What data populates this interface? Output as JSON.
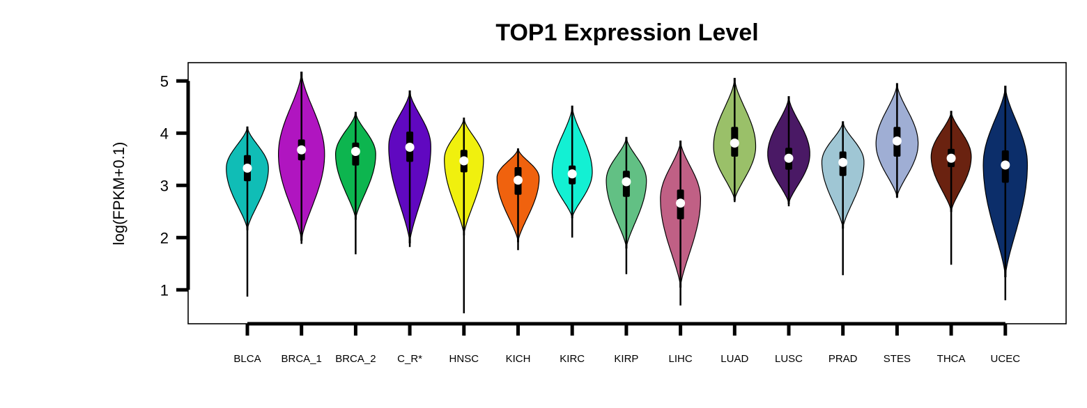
{
  "chart_data": {
    "type": "violin",
    "title": "TOP1 Expression Level",
    "ylabel": "log(FPKM+0.1)",
    "xlabel": "",
    "ylim": [
      0.35,
      5.35
    ],
    "yticks": [
      1,
      2,
      3,
      4,
      5
    ],
    "categories": [
      "BLCA",
      "BRCA_1",
      "BRCA_2",
      "C_R*",
      "HNSC",
      "KICH",
      "KIRC",
      "KIRP",
      "LIHC",
      "LUAD",
      "LUSC",
      "PRAD",
      "STES",
      "THCA",
      "UCEC"
    ],
    "series": [
      {
        "category": "BLCA",
        "color": "#10BDB6",
        "min": 0.87,
        "max": 4.12,
        "q1": 3.08,
        "median": 3.33,
        "q3": 3.58,
        "violin_top": 4.12,
        "violin_bottom": 2.15,
        "mode": 3.33,
        "maxwidth": 0.84
      },
      {
        "category": "BRCA_1",
        "color": "#B015C0",
        "min": 1.88,
        "max": 5.17,
        "q1": 3.48,
        "median": 3.68,
        "q3": 3.88,
        "violin_top": 5.17,
        "violin_bottom": 1.95,
        "mode": 3.6,
        "maxwidth": 0.92
      },
      {
        "category": "BRCA_2",
        "color": "#0DB54F",
        "min": 1.68,
        "max": 4.4,
        "q1": 3.38,
        "median": 3.65,
        "q3": 3.82,
        "violin_top": 4.4,
        "violin_bottom": 2.35,
        "mode": 3.6,
        "maxwidth": 0.8
      },
      {
        "category": "C_R*",
        "color": "#6008C0",
        "min": 1.82,
        "max": 4.81,
        "q1": 3.45,
        "median": 3.73,
        "q3": 4.03,
        "violin_top": 4.81,
        "violin_bottom": 1.9,
        "mode": 3.75,
        "maxwidth": 0.84
      },
      {
        "category": "HNSC",
        "color": "#F0F00E",
        "min": 0.55,
        "max": 4.29,
        "q1": 3.25,
        "median": 3.47,
        "q3": 3.68,
        "violin_top": 4.29,
        "violin_bottom": 2.05,
        "mode": 3.5,
        "maxwidth": 0.78
      },
      {
        "category": "KICH",
        "color": "#F0620E",
        "min": 1.76,
        "max": 3.7,
        "q1": 2.82,
        "median": 3.1,
        "q3": 3.35,
        "violin_top": 3.7,
        "violin_bottom": 1.92,
        "mode": 3.15,
        "maxwidth": 0.84
      },
      {
        "category": "KIRC",
        "color": "#13F0D3",
        "min": 2.0,
        "max": 4.52,
        "q1": 3.02,
        "median": 3.22,
        "q3": 3.38,
        "violin_top": 4.52,
        "violin_bottom": 2.38,
        "mode": 3.25,
        "maxwidth": 0.8
      },
      {
        "category": "KIRP",
        "color": "#62C084",
        "min": 1.3,
        "max": 3.92,
        "q1": 2.78,
        "median": 3.07,
        "q3": 3.28,
        "violin_top": 3.92,
        "violin_bottom": 1.8,
        "mode": 3.1,
        "maxwidth": 0.8
      },
      {
        "category": "LIHC",
        "color": "#C06085",
        "min": 0.7,
        "max": 3.85,
        "q1": 2.35,
        "median": 2.66,
        "q3": 2.92,
        "violin_top": 3.85,
        "violin_bottom": 1.05,
        "mode": 2.75,
        "maxwidth": 0.8
      },
      {
        "category": "LUAD",
        "color": "#9AC069",
        "min": 2.68,
        "max": 5.05,
        "q1": 3.55,
        "median": 3.81,
        "q3": 4.12,
        "violin_top": 5.05,
        "violin_bottom": 2.72,
        "mode": 3.75,
        "maxwidth": 0.84
      },
      {
        "category": "LUSC",
        "color": "#4A1965",
        "min": 2.6,
        "max": 4.7,
        "q1": 3.3,
        "median": 3.52,
        "q3": 3.72,
        "violin_top": 4.7,
        "violin_bottom": 2.65,
        "mode": 3.6,
        "maxwidth": 0.84
      },
      {
        "category": "PRAD",
        "color": "#9FC6D4",
        "min": 1.28,
        "max": 4.22,
        "q1": 3.18,
        "median": 3.44,
        "q3": 3.65,
        "violin_top": 4.22,
        "violin_bottom": 2.18,
        "mode": 3.45,
        "maxwidth": 0.84
      },
      {
        "category": "STES",
        "color": "#9FAED4",
        "min": 2.76,
        "max": 4.95,
        "q1": 3.55,
        "median": 3.85,
        "q3": 4.12,
        "violin_top": 4.95,
        "violin_bottom": 2.78,
        "mode": 3.8,
        "maxwidth": 0.84
      },
      {
        "category": "THCA",
        "color": "#6A2210",
        "min": 1.48,
        "max": 4.42,
        "q1": 3.35,
        "median": 3.52,
        "q3": 3.7,
        "violin_top": 4.42,
        "violin_bottom": 2.5,
        "mode": 3.55,
        "maxwidth": 0.8
      },
      {
        "category": "UCEC",
        "color": "#0C2E6A",
        "min": 0.8,
        "max": 4.9,
        "q1": 3.05,
        "median": 3.39,
        "q3": 3.67,
        "violin_top": 4.9,
        "violin_bottom": 1.25,
        "mode": 3.4,
        "maxwidth": 0.88
      }
    ],
    "box_color": "#000000",
    "median_color": "#FFFFFF",
    "grid": false,
    "legend": "none"
  }
}
